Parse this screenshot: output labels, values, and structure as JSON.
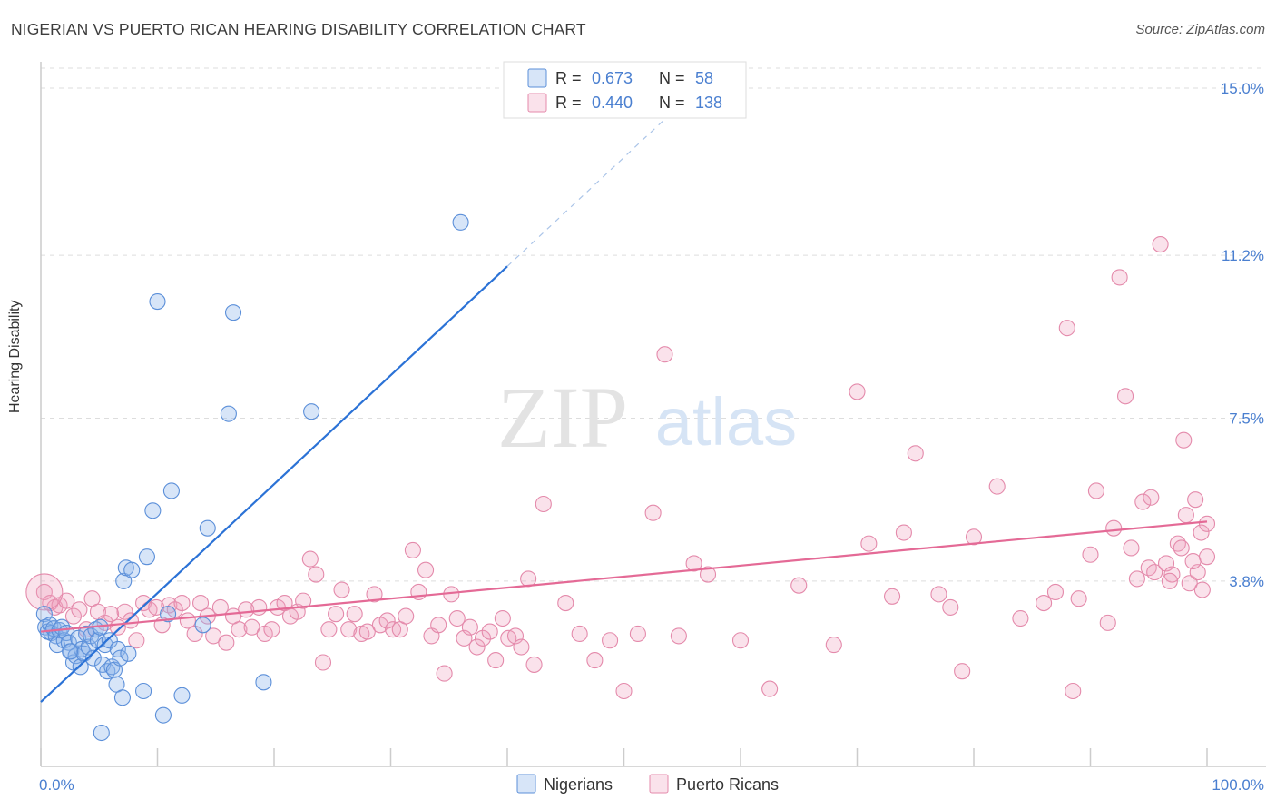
{
  "title": "NIGERIAN VS PUERTO RICAN HEARING DISABILITY CORRELATION CHART",
  "source": "Source: ZipAtlas.com",
  "watermark": {
    "zip": "ZIP",
    "atlas": "atlas"
  },
  "colors": {
    "blue": "#5b8fd9",
    "blue_fill": "rgba(140,180,235,0.35)",
    "blue_line": "#2b72d6",
    "pink": "#e48aab",
    "pink_fill": "rgba(240,160,190,0.30)",
    "pink_line": "#e46a96",
    "axis_label": "#4a7fd0",
    "grid": "#dddddd"
  },
  "legend_top": [
    {
      "r_label": "R =",
      "r_value": "0.673",
      "n_label": "N =",
      "n_value": "58",
      "series": "blue"
    },
    {
      "r_label": "R =",
      "r_value": "0.440",
      "n_label": "N =",
      "n_value": "138",
      "series": "pink"
    }
  ],
  "chart_data": {
    "type": "scatter",
    "xlabel": "",
    "ylabel": "Hearing Disability",
    "xlim": [
      0,
      100
    ],
    "ylim": [
      0,
      15.0
    ],
    "x_tick_labels": [
      "0.0%",
      "100.0%"
    ],
    "y_ticks": [
      {
        "value": 3.8,
        "label": "3.8%"
      },
      {
        "value": 7.5,
        "label": "7.5%"
      },
      {
        "value": 11.2,
        "label": "11.2%"
      },
      {
        "value": 15.0,
        "label": "15.0%"
      }
    ],
    "legend_position": "bottom-center",
    "series": [
      {
        "name": "Nigerians",
        "color": "blue",
        "trend": {
          "x0": 0,
          "y0": 1.05,
          "x1": 40,
          "y1": 10.95,
          "dash_to_x": 53.5
        },
        "points": [
          [
            0.3,
            3.05
          ],
          [
            0.4,
            2.75
          ],
          [
            0.6,
            2.65
          ],
          [
            0.8,
            2.8
          ],
          [
            0.9,
            2.62
          ],
          [
            1.1,
            2.72
          ],
          [
            1.3,
            2.55
          ],
          [
            1.4,
            2.35
          ],
          [
            1.6,
            2.68
          ],
          [
            1.8,
            2.75
          ],
          [
            2.0,
            2.45
          ],
          [
            2.2,
            2.62
          ],
          [
            2.4,
            2.4
          ],
          [
            2.6,
            2.2
          ],
          [
            2.8,
            1.95
          ],
          [
            3.0,
            2.1
          ],
          [
            3.2,
            2.5
          ],
          [
            3.4,
            1.85
          ],
          [
            3.5,
            2.25
          ],
          [
            3.7,
            2.15
          ],
          [
            3.9,
            2.6
          ],
          [
            4.1,
            2.3
          ],
          [
            4.3,
            2.55
          ],
          [
            4.5,
            2.05
          ],
          [
            4.7,
            2.7
          ],
          [
            4.9,
            2.45
          ],
          [
            5.1,
            2.75
          ],
          [
            5.3,
            1.9
          ],
          [
            5.5,
            2.35
          ],
          [
            5.7,
            1.75
          ],
          [
            5.9,
            2.45
          ],
          [
            6.1,
            1.85
          ],
          [
            6.3,
            1.78
          ],
          [
            6.5,
            1.45
          ],
          [
            6.6,
            2.25
          ],
          [
            6.8,
            2.05
          ],
          [
            7.0,
            1.15
          ],
          [
            7.1,
            3.8
          ],
          [
            7.3,
            4.1
          ],
          [
            7.5,
            2.15
          ],
          [
            7.8,
            4.05
          ],
          [
            8.8,
            1.3
          ],
          [
            9.1,
            4.35
          ],
          [
            9.6,
            5.4
          ],
          [
            10.0,
            10.15
          ],
          [
            10.5,
            0.75
          ],
          [
            10.9,
            3.05
          ],
          [
            11.2,
            5.85
          ],
          [
            12.1,
            1.2
          ],
          [
            13.9,
            2.8
          ],
          [
            14.3,
            5.0
          ],
          [
            16.1,
            7.6
          ],
          [
            16.5,
            9.9
          ],
          [
            19.1,
            1.5
          ],
          [
            23.2,
            7.65
          ],
          [
            36.0,
            11.95
          ],
          [
            2.5,
            2.2
          ],
          [
            5.2,
            0.35
          ]
        ]
      },
      {
        "name": "Puerto Ricans",
        "color": "pink",
        "trend": {
          "x0": 0,
          "y0": 2.65,
          "x1": 100,
          "y1": 5.15
        },
        "points": [
          [
            0.3,
            3.55
          ],
          [
            0.8,
            3.3
          ],
          [
            1.2,
            3.2
          ],
          [
            1.6,
            3.25
          ],
          [
            2.2,
            3.35
          ],
          [
            2.8,
            3.0
          ],
          [
            3.3,
            3.15
          ],
          [
            3.9,
            2.7
          ],
          [
            4.4,
            3.4
          ],
          [
            4.9,
            3.1
          ],
          [
            5.5,
            2.85
          ],
          [
            6.0,
            3.05
          ],
          [
            6.6,
            2.75
          ],
          [
            7.2,
            3.1
          ],
          [
            7.7,
            2.9
          ],
          [
            8.2,
            2.45
          ],
          [
            8.8,
            3.3
          ],
          [
            9.3,
            3.15
          ],
          [
            9.9,
            3.2
          ],
          [
            10.4,
            2.8
          ],
          [
            11.0,
            3.25
          ],
          [
            11.5,
            3.15
          ],
          [
            12.1,
            3.3
          ],
          [
            12.6,
            2.9
          ],
          [
            13.2,
            2.6
          ],
          [
            13.7,
            3.3
          ],
          [
            14.3,
            3.0
          ],
          [
            14.8,
            2.55
          ],
          [
            15.4,
            3.2
          ],
          [
            15.9,
            2.4
          ],
          [
            16.5,
            3.0
          ],
          [
            17.0,
            2.7
          ],
          [
            17.6,
            3.15
          ],
          [
            18.1,
            2.75
          ],
          [
            18.7,
            3.2
          ],
          [
            19.2,
            2.6
          ],
          [
            19.8,
            2.7
          ],
          [
            20.3,
            3.2
          ],
          [
            20.9,
            3.3
          ],
          [
            21.4,
            3.0
          ],
          [
            22.0,
            3.1
          ],
          [
            22.5,
            3.35
          ],
          [
            23.1,
            4.3
          ],
          [
            23.6,
            3.95
          ],
          [
            24.2,
            1.95
          ],
          [
            24.7,
            2.7
          ],
          [
            25.3,
            3.05
          ],
          [
            25.8,
            3.6
          ],
          [
            26.4,
            2.7
          ],
          [
            26.9,
            3.05
          ],
          [
            27.5,
            2.6
          ],
          [
            28.0,
            2.65
          ],
          [
            28.6,
            3.5
          ],
          [
            29.1,
            2.8
          ],
          [
            29.7,
            2.9
          ],
          [
            30.2,
            2.7
          ],
          [
            30.8,
            2.7
          ],
          [
            31.3,
            3.0
          ],
          [
            31.9,
            4.5
          ],
          [
            32.4,
            3.55
          ],
          [
            33.0,
            4.05
          ],
          [
            33.5,
            2.55
          ],
          [
            34.1,
            2.8
          ],
          [
            34.6,
            1.7
          ],
          [
            35.2,
            3.5
          ],
          [
            35.7,
            2.95
          ],
          [
            36.3,
            2.5
          ],
          [
            36.8,
            2.75
          ],
          [
            37.4,
            2.3
          ],
          [
            37.9,
            2.5
          ],
          [
            38.5,
            2.65
          ],
          [
            39.0,
            2.0
          ],
          [
            39.6,
            2.95
          ],
          [
            40.1,
            2.5
          ],
          [
            40.7,
            2.55
          ],
          [
            41.2,
            2.3
          ],
          [
            41.8,
            3.85
          ],
          [
            42.3,
            1.9
          ],
          [
            43.1,
            5.55
          ],
          [
            45.0,
            3.3
          ],
          [
            46.2,
            2.6
          ],
          [
            47.5,
            2.0
          ],
          [
            48.8,
            2.45
          ],
          [
            50.0,
            1.3
          ],
          [
            51.2,
            2.6
          ],
          [
            52.5,
            5.35
          ],
          [
            53.5,
            8.95
          ],
          [
            54.7,
            2.55
          ],
          [
            56.0,
            4.2
          ],
          [
            57.2,
            3.95
          ],
          [
            60.0,
            2.45
          ],
          [
            62.5,
            1.35
          ],
          [
            65.0,
            3.7
          ],
          [
            68.0,
            2.35
          ],
          [
            70.0,
            8.1
          ],
          [
            71.0,
            4.65
          ],
          [
            73.0,
            3.45
          ],
          [
            74.0,
            4.9
          ],
          [
            75.0,
            6.7
          ],
          [
            77.0,
            3.5
          ],
          [
            78.0,
            3.2
          ],
          [
            79.0,
            1.75
          ],
          [
            80.0,
            4.8
          ],
          [
            82.0,
            5.95
          ],
          [
            84.0,
            2.95
          ],
          [
            86.0,
            3.3
          ],
          [
            87.0,
            3.55
          ],
          [
            88.0,
            9.55
          ],
          [
            88.5,
            1.3
          ],
          [
            89.0,
            3.4
          ],
          [
            90.0,
            4.4
          ],
          [
            90.5,
            5.85
          ],
          [
            91.5,
            2.85
          ],
          [
            92.0,
            5.0
          ],
          [
            92.5,
            10.7
          ],
          [
            93.0,
            8.0
          ],
          [
            93.5,
            4.55
          ],
          [
            94.0,
            3.85
          ],
          [
            94.5,
            5.6
          ],
          [
            95.0,
            4.1
          ],
          [
            95.5,
            4.0
          ],
          [
            96.0,
            11.45
          ],
          [
            96.5,
            4.2
          ],
          [
            97.0,
            3.95
          ],
          [
            97.5,
            4.65
          ],
          [
            98.0,
            7.0
          ],
          [
            98.5,
            3.75
          ],
          [
            99.0,
            5.65
          ],
          [
            99.5,
            4.9
          ],
          [
            100.0,
            5.1
          ],
          [
            99.2,
            4.0
          ],
          [
            96.8,
            3.8
          ],
          [
            98.8,
            4.25
          ],
          [
            97.8,
            4.55
          ],
          [
            99.6,
            3.6
          ],
          [
            100.0,
            4.35
          ],
          [
            95.2,
            5.7
          ],
          [
            98.2,
            5.3
          ]
        ]
      }
    ]
  }
}
